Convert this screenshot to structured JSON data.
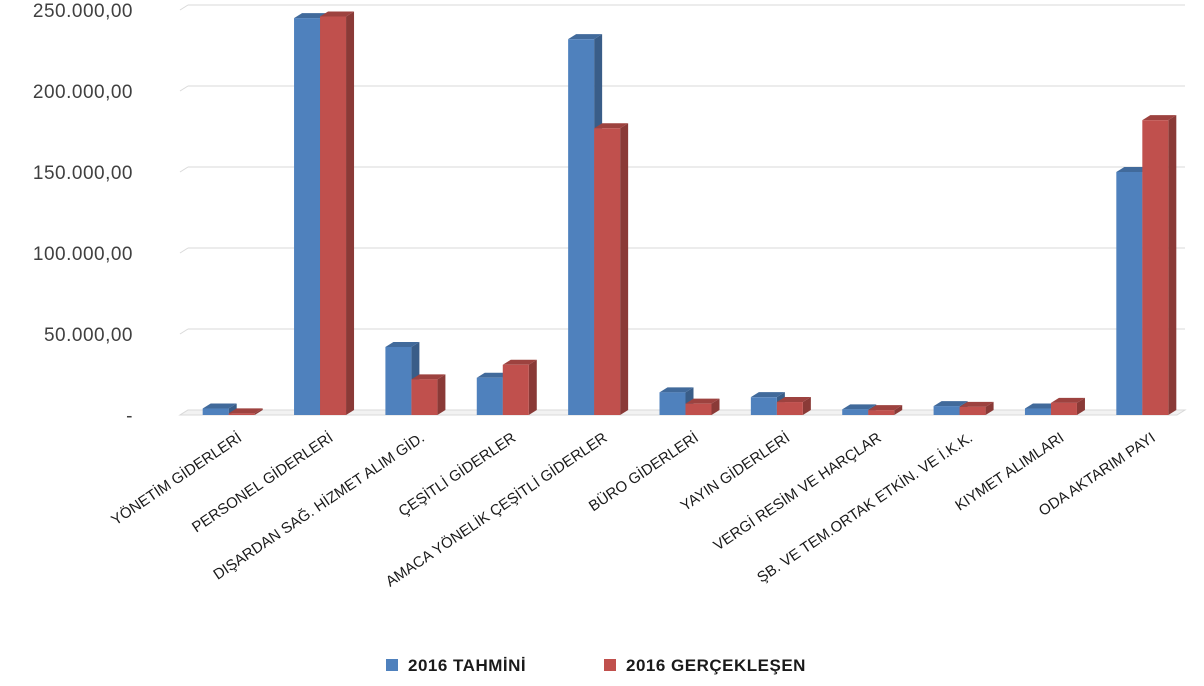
{
  "chart_data": {
    "type": "bar",
    "categories": [
      "YÖNETİM GİDERLERİ",
      "PERSONEL GİDERLERİ",
      "DIŞARDAN SAĞ. HİZMET ALIM GİD.",
      "ÇEŞİTLİ GİDERLER",
      "AMACA YÖNELİK ÇEŞİTLİ GİDERLER",
      "BÜRO GİDERLERİ",
      "YAYIN GİDERLERİ",
      "VERGİ RESİM VE HARÇLAR",
      "ŞB. VE TEM.ORTAK ETKİN. VE İ.K.K.",
      "KIYMET ALIMLARI",
      "ODA AKTARIM PAYI"
    ],
    "series": [
      {
        "name": "2016 TAHMİNİ",
        "color": "#4f81bd",
        "values": [
          4000,
          245000,
          42000,
          23000,
          232000,
          14000,
          11000,
          3500,
          5500,
          4000,
          150000
        ]
      },
      {
        "name": "2016 GERÇEKLEŞEN",
        "color": "#c0504d",
        "values": [
          1000,
          246000,
          22000,
          31000,
          177000,
          7000,
          8000,
          3000,
          5000,
          7500,
          182000
        ]
      }
    ],
    "yticks": [
      "-",
      "50.000,00",
      "100.000,00",
      "150.000,00",
      "200.000,00",
      "250.000,00"
    ],
    "ylim": [
      0,
      250000
    ],
    "title": "",
    "xlabel": "",
    "ylabel": "",
    "grid": true,
    "legend_position": "bottom"
  }
}
